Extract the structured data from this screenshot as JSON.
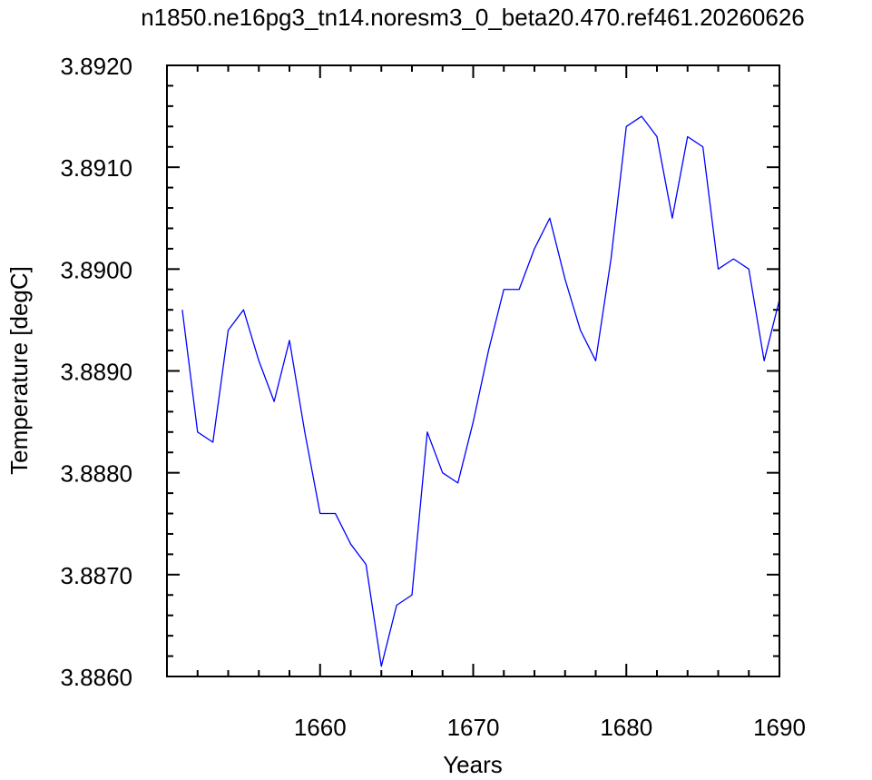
{
  "chart_data": {
    "type": "line",
    "title": "n1850.ne16pg3_tn14.noresm3_0_beta20.470.ref461.20260626",
    "xlabel": "Years",
    "ylabel": "Temperature [degC]",
    "xlim": [
      1650,
      1690
    ],
    "ylim": [
      3.886,
      3.892
    ],
    "x_ticks": [
      1660,
      1670,
      1680,
      1690
    ],
    "x_tick_labels": [
      "1660",
      "1670",
      "1680",
      "1690"
    ],
    "y_ticks": [
      3.886,
      3.887,
      3.888,
      3.889,
      3.89,
      3.891,
      3.892
    ],
    "y_tick_labels": [
      "3.8860",
      "3.8870",
      "3.8880",
      "3.8890",
      "3.8900",
      "3.8910",
      "3.8920"
    ],
    "grid": false,
    "line_color": "#0000ff",
    "series": [
      {
        "x": [
          1651,
          1652,
          1653,
          1654,
          1655,
          1656,
          1657,
          1658,
          1659,
          1660,
          1661,
          1662,
          1663,
          1664,
          1665,
          1666,
          1667,
          1668,
          1669,
          1670,
          1671,
          1672,
          1673,
          1674,
          1675,
          1676,
          1677,
          1678,
          1679,
          1680,
          1681,
          1682,
          1683,
          1684,
          1685,
          1686,
          1687,
          1688,
          1689,
          1690
        ],
        "values": [
          3.8896,
          3.8884,
          3.8883,
          3.8894,
          3.8896,
          3.8891,
          3.8887,
          3.8893,
          3.8884,
          3.8876,
          3.8876,
          3.8873,
          3.8871,
          3.8861,
          3.8867,
          3.8868,
          3.8884,
          3.888,
          3.8879,
          3.8885,
          3.8892,
          3.8898,
          3.8898,
          3.8902,
          3.8905,
          3.8899,
          3.8894,
          3.8891,
          3.8901,
          3.8914,
          3.8915,
          3.8913,
          3.8905,
          3.8913,
          3.8912,
          3.89,
          3.8901,
          3.89,
          3.8891,
          3.8897
        ]
      }
    ]
  }
}
